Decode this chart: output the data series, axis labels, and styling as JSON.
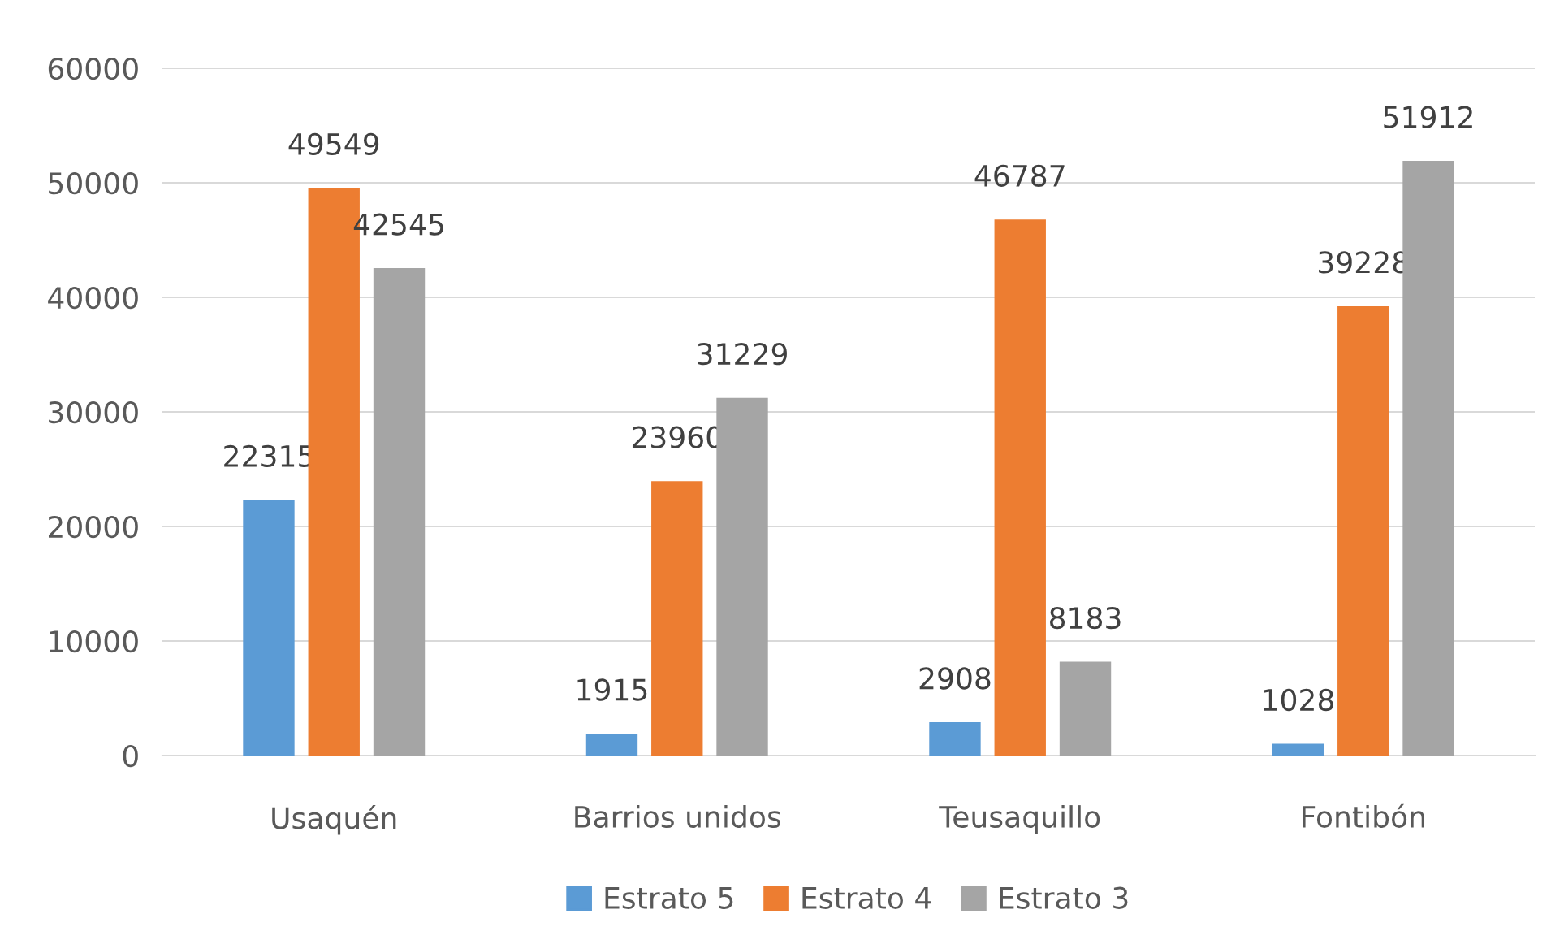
{
  "chart_data": {
    "type": "bar",
    "categories": [
      "Usaquén",
      "Barrios unidos",
      "Teusaquillo",
      "Fontibón"
    ],
    "series": [
      {
        "name": "Estrato 5",
        "color": "#5b9bd5",
        "values": [
          22315,
          1915,
          2908,
          1028
        ]
      },
      {
        "name": "Estrato 4",
        "color": "#ed7d31",
        "values": [
          49549,
          23960,
          46787,
          39228
        ]
      },
      {
        "name": "Estrato 3",
        "color": "#a5a5a5",
        "values": [
          42545,
          31229,
          8183,
          51912
        ]
      }
    ],
    "ylim": [
      0,
      60000
    ],
    "yticks": [
      0,
      10000,
      20000,
      30000,
      40000,
      50000,
      60000
    ],
    "grid": "y",
    "legend": "bottom",
    "data_labels": true
  }
}
